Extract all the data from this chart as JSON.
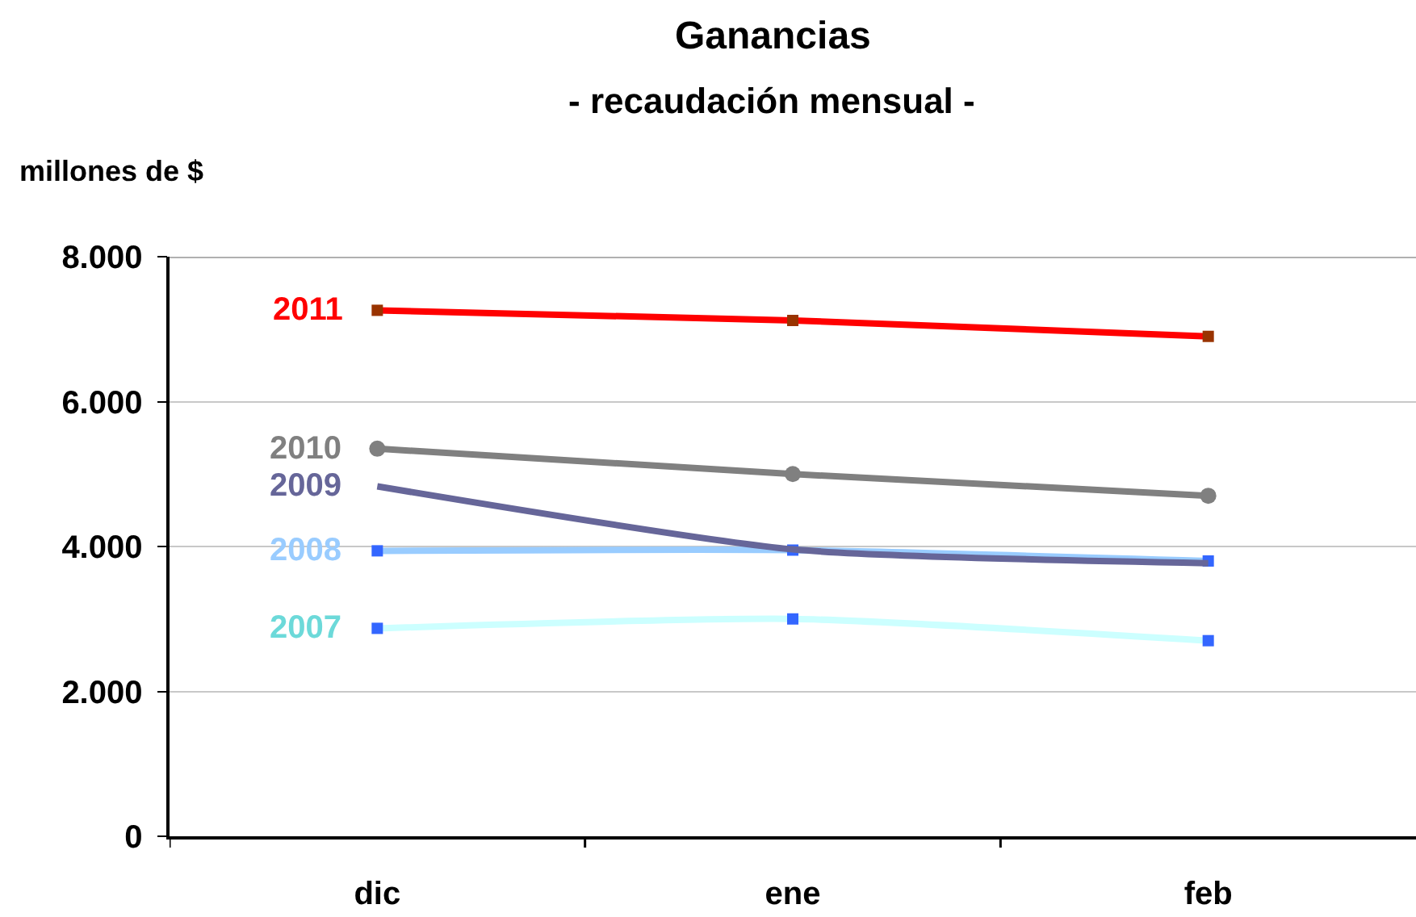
{
  "chart_data": {
    "type": "line",
    "title": "Ganancias",
    "subtitle": "- recaudación mensual -",
    "ylabel": "millones de $",
    "categories": [
      "dic",
      "ene",
      "feb"
    ],
    "series": [
      {
        "name": "2007",
        "color": "#ccffff",
        "marker": "square",
        "colors": [
          "#3366ff",
          "#3366ff",
          "#3366ff"
        ],
        "values": [
          2870,
          3000,
          2700
        ]
      },
      {
        "name": "2008",
        "color": "#99ccff",
        "marker": "square",
        "colors": [
          "#3366ff",
          "#3366ff",
          "#3366ff"
        ],
        "values": [
          3940,
          3950,
          3800
        ]
      },
      {
        "name": "2009",
        "color": "#666699",
        "marker": "none",
        "values": [
          4830,
          3960,
          3770
        ]
      },
      {
        "name": "2010",
        "color": "#808080",
        "marker": "circle",
        "values": [
          5350,
          5000,
          4700
        ]
      },
      {
        "name": "2011",
        "color": "#ff0000",
        "marker": "square",
        "colors": [
          "#993300",
          "#993300",
          "#993300"
        ],
        "values": [
          7260,
          7120,
          6900
        ]
      }
    ],
    "ylim": [
      0,
      8000
    ],
    "yticks": [
      0,
      {
        "value": 2000,
        "label": "2.000"
      },
      {
        "value": 4000,
        "label": "4.000"
      },
      {
        "value": 6000,
        "label": "6.000"
      },
      {
        "value": 8000,
        "label": "8.000"
      }
    ],
    "grid": "y",
    "line_style": "solid"
  }
}
